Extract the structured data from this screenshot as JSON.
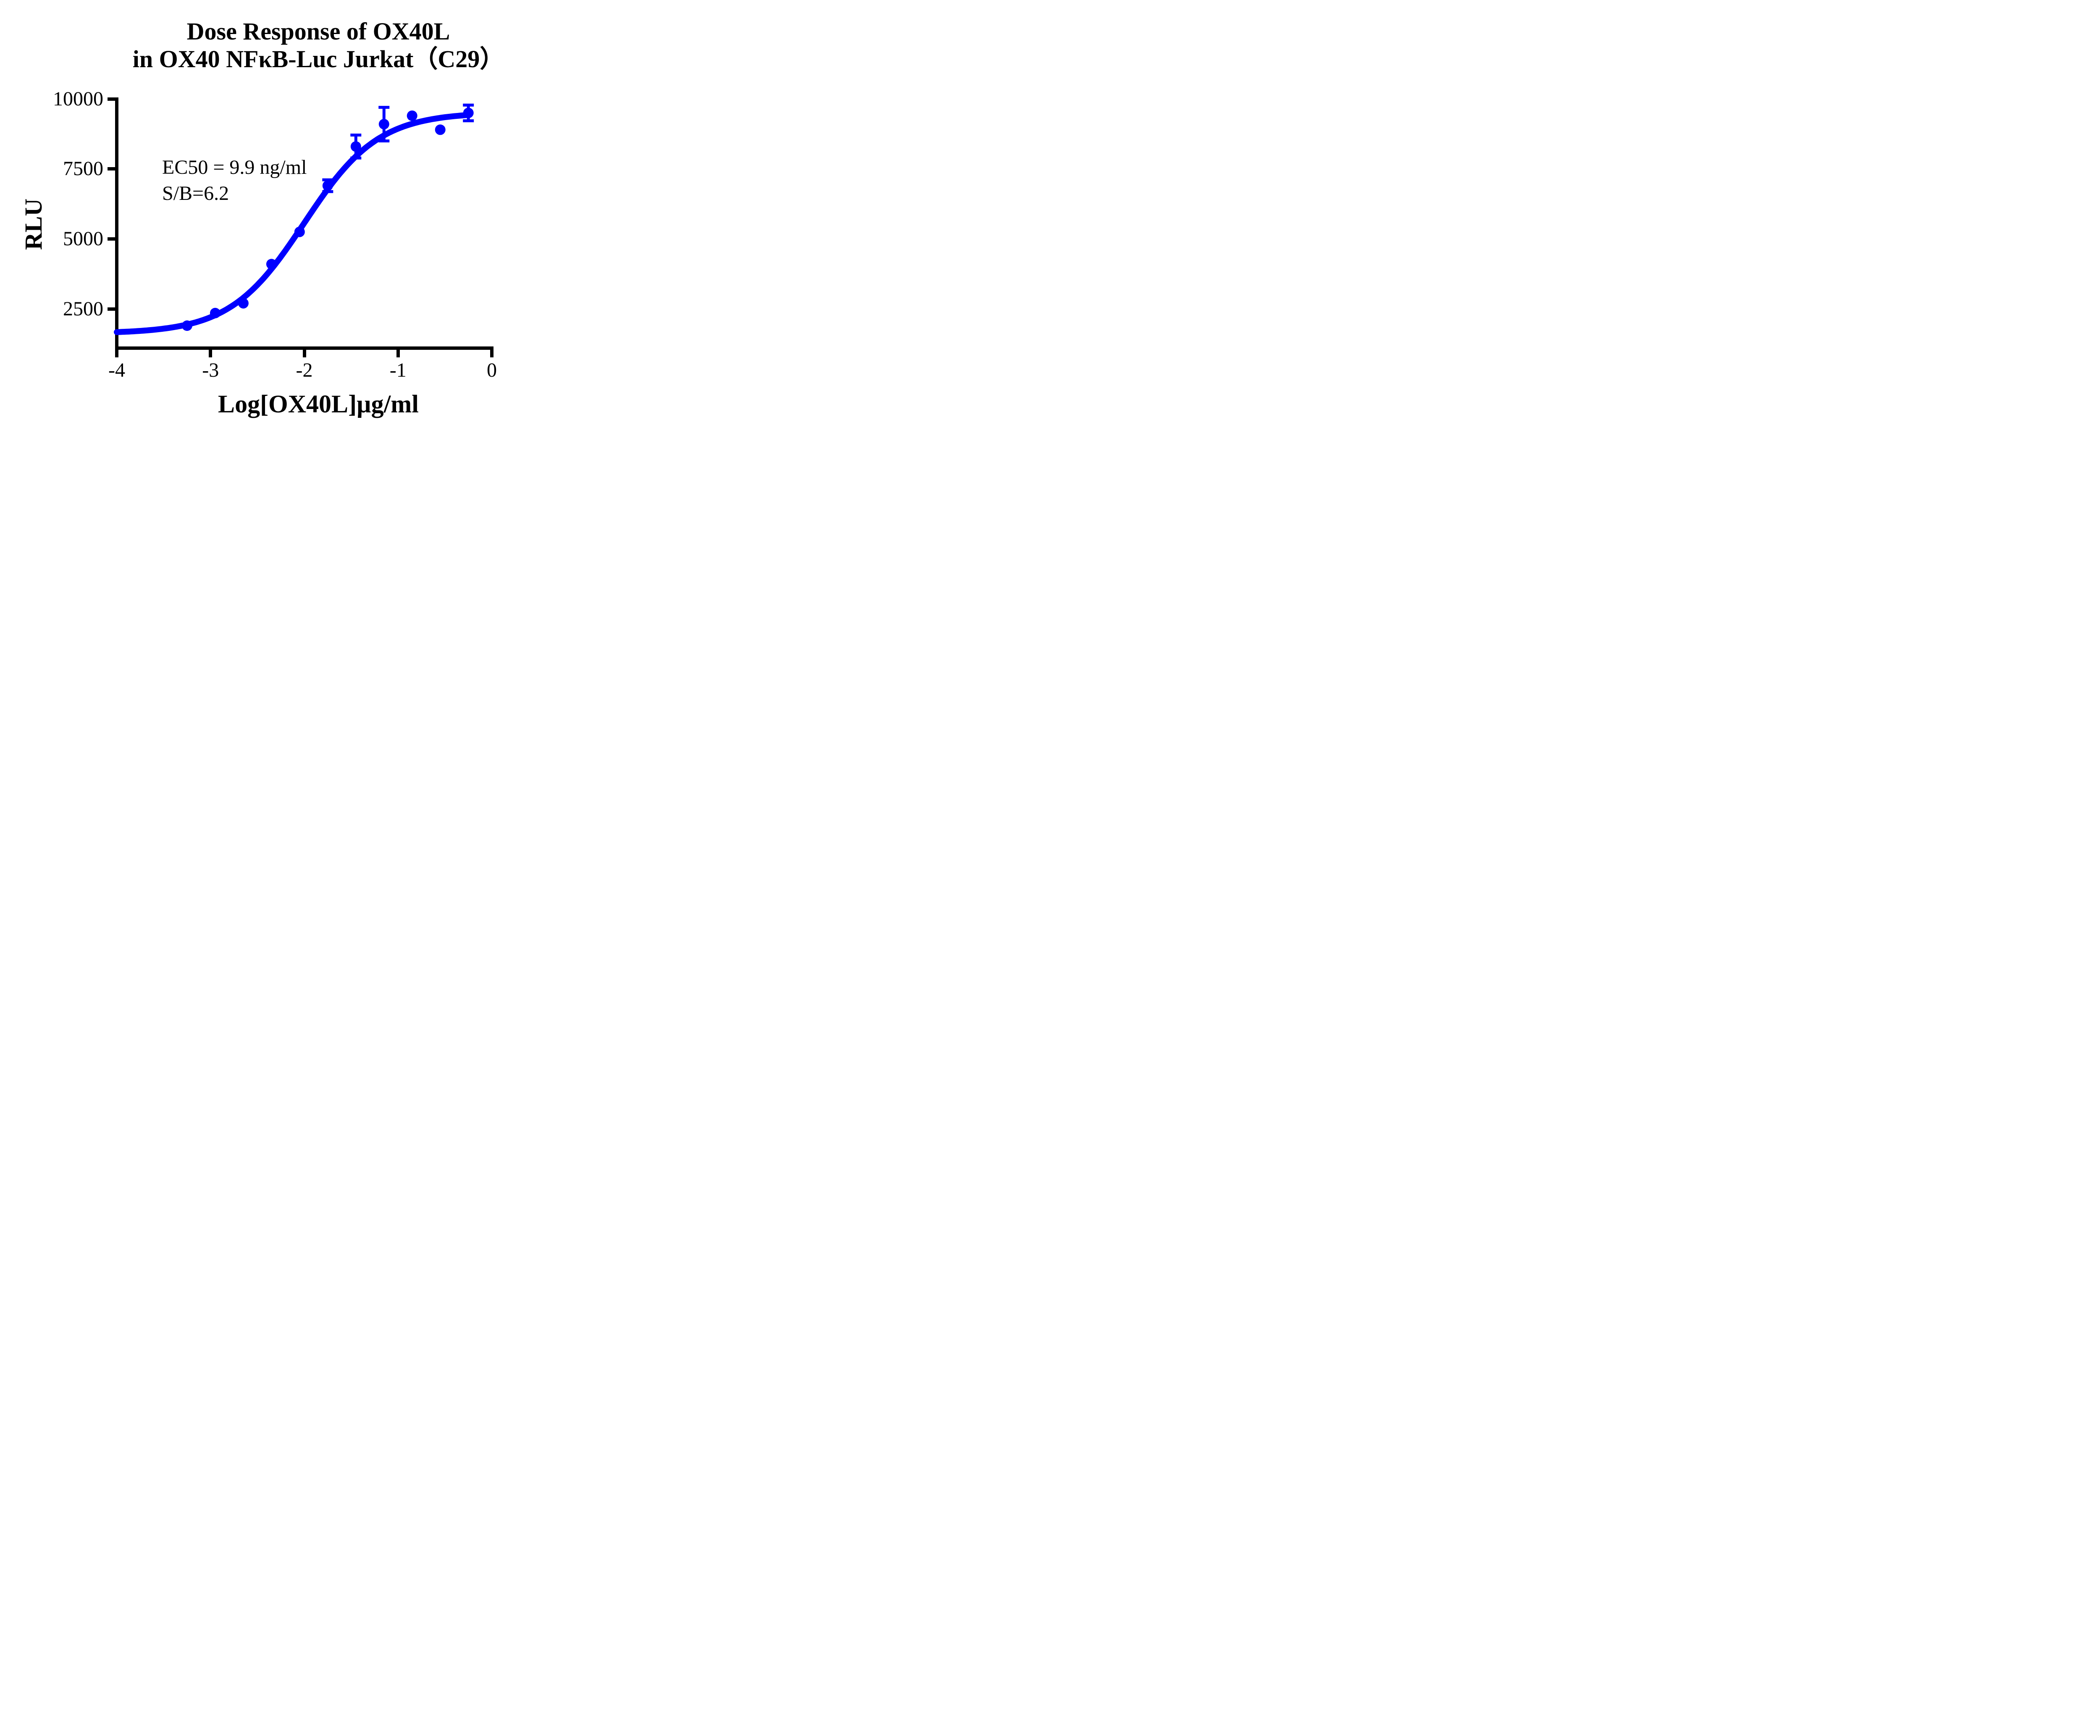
{
  "title": {
    "line1": "Dose Response of OX40L",
    "line2": "in OX40 NFκB-Luc Jurkat（C29）"
  },
  "annotation": {
    "line1": "EC50 = 9.9 ng/ml",
    "line2": "S/B=6.2"
  },
  "axes": {
    "y_label": "RLU",
    "x_label": "Log[OX40L]µg/ml"
  },
  "colors": {
    "series": "#0000FF",
    "axis": "#000000",
    "background": "#FFFFFF"
  },
  "chart_data": {
    "type": "scatter",
    "title": "Dose Response of OX40L in OX40 NFκB-Luc Jurkat（C29）",
    "xlabel": "Log[OX40L]µg/ml",
    "ylabel": "RLU",
    "xlim": [
      -4,
      0
    ],
    "ylim": [
      1100,
      10000
    ],
    "x_ticks": [
      -4,
      -3,
      -2,
      -1,
      0
    ],
    "y_ticks": [
      2500,
      5000,
      7500,
      10000
    ],
    "grid": false,
    "legend": "none",
    "series": [
      {
        "name": "OX40L",
        "color": "#0000FF",
        "x": [
          -3.25,
          -2.95,
          -2.65,
          -2.35,
          -2.05,
          -1.75,
          -1.45,
          -1.15,
          -0.85,
          -0.55,
          -0.25
        ],
        "y": [
          1900,
          2350,
          2700,
          4100,
          5250,
          6900,
          8300,
          9100,
          9400,
          8900,
          9500
        ],
        "y_err": [
          0,
          0,
          0,
          0,
          0,
          210,
          410,
          600,
          0,
          0,
          280
        ]
      }
    ],
    "fit_curve": {
      "model": "4PL sigmoid",
      "bottom": 1620,
      "top": 9520,
      "log_ec50": -2.0,
      "hill": 1.1,
      "x_start": -4,
      "x_end": -0.25,
      "ec50_text": "EC50 = 9.9 ng/ml",
      "signal_to_background": "S/B=6.2"
    }
  }
}
